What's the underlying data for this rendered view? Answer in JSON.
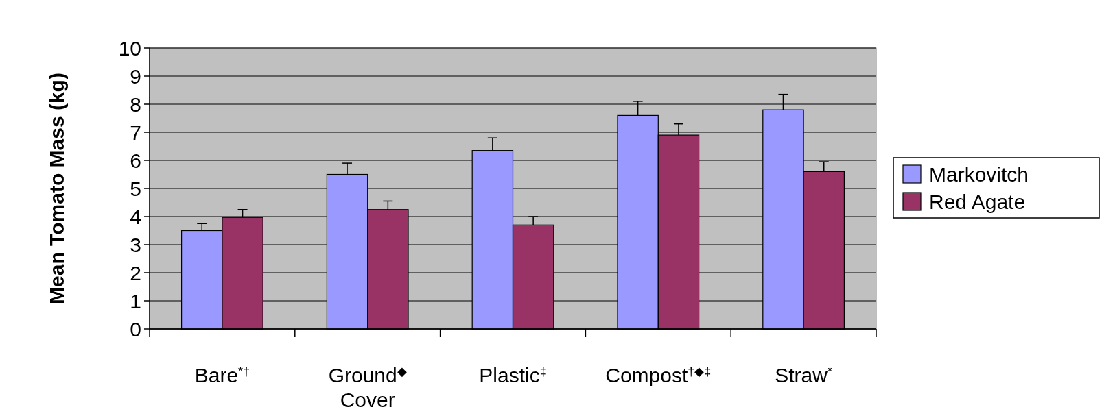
{
  "chart_data": {
    "type": "bar",
    "ylabel": "Mean Tomato Mass (kg)",
    "categories": [
      "Bare$^{*†}$",
      "Ground$^{◆}$ Cover",
      "Plastic$^{‡}$",
      "Compost$^{†◆‡}$",
      "Straw$^{*}$"
    ],
    "series": [
      {
        "name": "Markovitch",
        "color": "#9999ff",
        "values": [
          3.5,
          5.5,
          6.35,
          7.6,
          7.8
        ],
        "errors": [
          [
            3.5,
            3.75
          ],
          [
            5.5,
            5.9
          ],
          [
            6.35,
            6.8
          ],
          [
            7.6,
            8.1
          ],
          [
            7.8,
            8.35
          ]
        ]
      },
      {
        "name": "Red Agate",
        "color": "#993366",
        "values": [
          3.97,
          4.25,
          3.7,
          6.9,
          5.6
        ],
        "errors": [
          [
            3.97,
            4.25
          ],
          [
            4.25,
            4.55
          ],
          [
            3.7,
            4.0
          ],
          [
            6.9,
            7.3
          ],
          [
            5.6,
            5.95
          ]
        ]
      }
    ],
    "ylim": [
      0,
      10
    ],
    "yticks": [
      0,
      1,
      2,
      3,
      4,
      5,
      6,
      7,
      8,
      9,
      10
    ],
    "grid": "y",
    "legend": "right"
  }
}
